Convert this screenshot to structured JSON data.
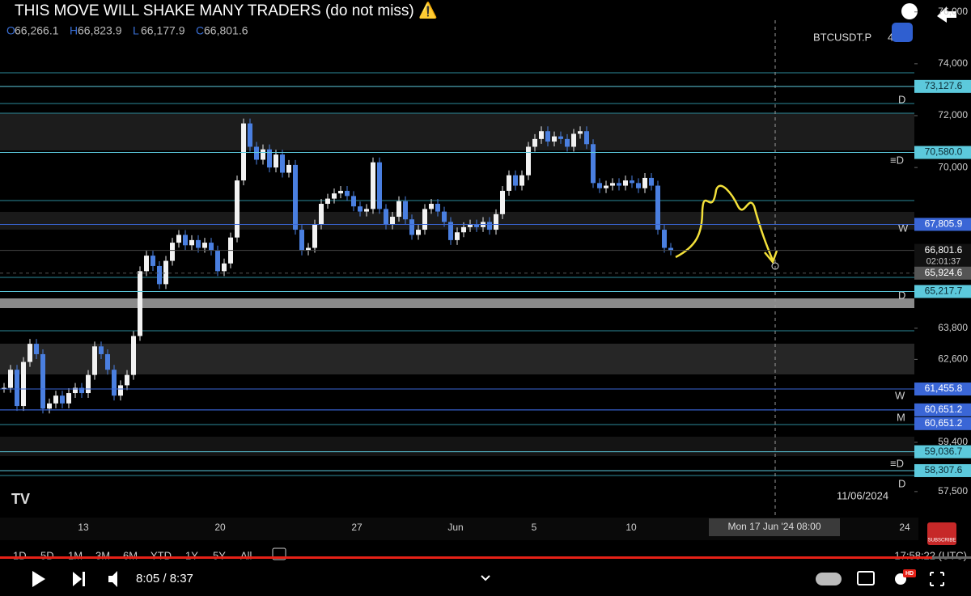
{
  "video": {
    "title": "THIS MOVE WILL SHAKE MANY TRADERS (do not miss) ⚠️",
    "time": "8:05 / 8:37",
    "subscribe": "SUBSCRIBE",
    "hd": "HD"
  },
  "chart": {
    "ohlc": [
      {
        "key": "O",
        "value": "66,266.1"
      },
      {
        "key": "H",
        "value": "66,823.9"
      },
      {
        "key": "L",
        "value": "66,177.9"
      },
      {
        "key": "C",
        "value": "66,801.6"
      }
    ],
    "symbol": "BTCUSDT.P",
    "symbol_suffix": "4",
    "price_axis": [
      {
        "value": 76000,
        "label": "76,000"
      },
      {
        "value": 74000,
        "label": "74,000"
      },
      {
        "value": 72000,
        "label": "72,000"
      },
      {
        "value": 70000,
        "label": "70,000"
      },
      {
        "value": 63800,
        "label": "63,800"
      },
      {
        "value": 62600,
        "label": "62,600"
      },
      {
        "value": 59400,
        "label": "59,400"
      },
      {
        "value": 57500,
        "label": "57,500"
      }
    ],
    "tags": [
      {
        "value": 73127.6,
        "label": "73,127.6",
        "color": "#5cc9dc",
        "text_color": "#0b2a33"
      },
      {
        "value": 70580.0,
        "label": "70,580.0",
        "color": "#5cc9dc",
        "text_color": "#0b2a33"
      },
      {
        "value": 67805.9,
        "label": "67,805.9",
        "color": "#3a66d6",
        "text_color": "#ffffff"
      },
      {
        "value": 66801.6,
        "label": "66,801.6",
        "color": "#111111",
        "text_color": "#ffffff"
      },
      {
        "value": 65924.6,
        "label": "65,924.6",
        "color": "#555555",
        "text_color": "#ffffff"
      },
      {
        "value": 65217.7,
        "label": "65,217.7",
        "color": "#5cc9dc",
        "text_color": "#0b2a33"
      },
      {
        "value": 61455.8,
        "label": "61,455.8",
        "color": "#3a66d6",
        "text_color": "#ffffff"
      },
      {
        "value": 60651.2,
        "label": "60,651.2",
        "color": "#3a66d6",
        "text_color": "#ffffff"
      },
      {
        "value": 60651.2,
        "label": "60,651.2",
        "color": "#3a66d6",
        "text_color": "#ffffff"
      },
      {
        "value": 59036.7,
        "label": "59,036.7",
        "color": "#5cc9dc",
        "text_color": "#0b2a33"
      },
      {
        "value": 58307.6,
        "label": "58,307.6",
        "color": "#5cc9dc",
        "text_color": "#0b2a33"
      }
    ],
    "markers": [
      "D",
      "≡D",
      "W",
      "D",
      "W",
      "M",
      "≡D",
      "D"
    ],
    "dates": [
      "13",
      "20",
      "27",
      "Jun",
      "5",
      "10",
      "24"
    ],
    "date_label": "11/06/2024",
    "crosshair_time": "Mon 17 Jun '24  08:00",
    "countdown": "02:01:37",
    "ranges": [
      "1D",
      "5D",
      "1M",
      "3M",
      "6M",
      "YTD",
      "1Y",
      "5Y",
      "All"
    ],
    "clock": "17:58:22 (UTC)",
    "closes": [
      61500,
      62200,
      60800,
      62500,
      63200,
      62800,
      60700,
      60900,
      61200,
      60900,
      61300,
      61500,
      61300,
      62000,
      63100,
      62800,
      62200,
      61200,
      61600,
      62000,
      63500,
      66000,
      66600,
      66200,
      65500,
      66400,
      67100,
      67400,
      67000,
      67200,
      66900,
      67100,
      66800,
      66000,
      66300,
      67300,
      69500,
      71700,
      70800,
      70300,
      70700,
      70000,
      70500,
      69800,
      70100,
      67600,
      66800,
      66900,
      67800,
      68600,
      68800,
      69000,
      69100,
      68900,
      68500,
      68300,
      68400,
      70200,
      68400,
      67800,
      68100,
      68700,
      68000,
      67400,
      67600,
      68400,
      68600,
      68300,
      67900,
      67200,
      67500,
      67700,
      67800,
      67700,
      67900,
      67600,
      68200,
      69100,
      69700,
      69300,
      69700,
      70800,
      71100,
      71400,
      71000,
      71200,
      71100,
      70800,
      71300,
      71400,
      70900,
      69400,
      69200,
      69300,
      69400,
      69300,
      69500,
      69400,
      69200,
      69600,
      69300,
      67600,
      66900,
      66801.6
    ]
  }
}
